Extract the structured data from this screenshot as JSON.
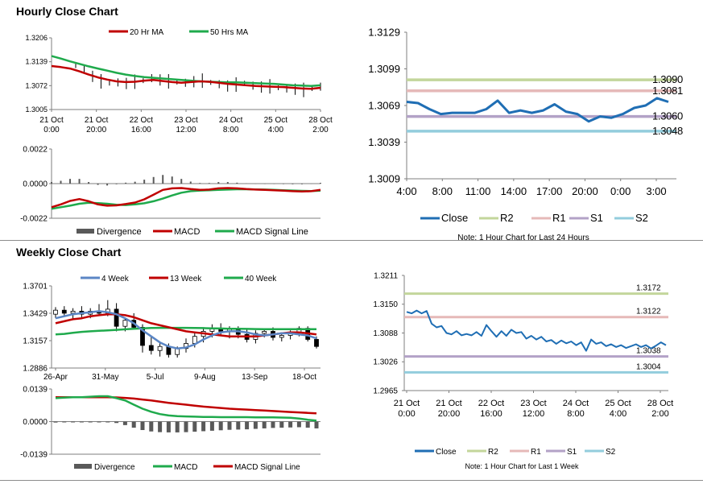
{
  "sections": {
    "hourly_title": "Hourly Close Chart",
    "weekly_title": "Weekly Close Chart"
  },
  "colors": {
    "ma_short": "#c00000",
    "ma_long": "#1faa4c",
    "ma_4week": "#5b86c5",
    "r2": "#c3d69b",
    "r1": "#e6b9b8",
    "s1": "#b3a2c7",
    "s2": "#93cddd",
    "close": "#1f6eb4",
    "divergence": "#595959"
  },
  "chart_data": [
    {
      "id": "hourly-price",
      "type": "line",
      "y_ticks": [
        "1.3206",
        "1.3139",
        "1.3072",
        "1.3005"
      ],
      "ylim": [
        1.3005,
        1.3206
      ],
      "x_ticks": [
        "21 Oct\n0:00",
        "21 Oct\n20:00",
        "22 Oct\n16:00",
        "23 Oct\n12:00",
        "24 Oct\n8:00",
        "25 Oct\n4:00",
        "28 Oct\n2:00"
      ],
      "legend": [
        "20 Hr MA",
        "50 Hrs MA"
      ],
      "series": [
        {
          "name": "20 Hr MA",
          "values": [
            1.3127,
            1.3124,
            1.312,
            1.3112,
            1.3103,
            1.3095,
            1.3089,
            1.3084,
            1.3082,
            1.3083,
            1.3086,
            1.3088,
            1.3085,
            1.3082,
            1.308,
            1.3082,
            1.3084,
            1.3083,
            1.308,
            1.3077,
            1.3075,
            1.3073,
            1.3071,
            1.307,
            1.3069,
            1.3068,
            1.3066,
            1.3064,
            1.3063,
            1.3066
          ]
        },
        {
          "name": "50 Hrs MA",
          "values": [
            1.3155,
            1.3148,
            1.314,
            1.3133,
            1.3126,
            1.312,
            1.3114,
            1.3108,
            1.3103,
            1.3099,
            1.3096,
            1.3094,
            1.3092,
            1.309,
            1.3088,
            1.3086,
            1.3084,
            1.3083,
            1.3082,
            1.3081,
            1.3081,
            1.308,
            1.3079,
            1.3078,
            1.3077,
            1.3075,
            1.3073,
            1.3072,
            1.3071,
            1.3073
          ]
        },
        {
          "name": "Close",
          "values": [
            1.3128,
            1.3118,
            1.3098,
            1.3084,
            1.3079,
            1.3081,
            1.3078,
            1.3083,
            1.3086,
            1.3093,
            1.3088,
            1.3084,
            1.3082,
            1.308,
            1.3083,
            1.3086,
            1.3081,
            1.3076,
            1.3071,
            1.3075,
            1.3079,
            1.3072,
            1.3068,
            1.307,
            1.3066,
            1.3064,
            1.3062,
            1.306,
            1.3064,
            1.3069
          ]
        }
      ]
    },
    {
      "id": "hourly-macd",
      "type": "line",
      "y_ticks": [
        "0.0022",
        "0.0000",
        "-0.0022"
      ],
      "ylim": [
        -0.0022,
        0.0022
      ],
      "legend": [
        "Divergence",
        "MACD",
        "MACD Signal Line"
      ],
      "series": [
        {
          "name": "MACD",
          "values": [
            -0.0015,
            -0.00132,
            -0.0011,
            -0.00098,
            -0.00112,
            -0.00132,
            -0.0014,
            -0.00138,
            -0.0013,
            -0.0012,
            -0.001,
            -0.0007,
            -0.0004,
            -0.0003,
            -0.00028,
            -0.00035,
            -0.0004,
            -0.00038,
            -0.0003,
            -0.00028,
            -0.0003,
            -0.00035,
            -0.00038,
            -0.0004,
            -0.00042,
            -0.00045,
            -0.00048,
            -0.0005,
            -0.00048,
            -0.0004
          ]
        },
        {
          "name": "MACD Signal Line",
          "values": [
            -0.0016,
            -0.0015,
            -0.0014,
            -0.00128,
            -0.00122,
            -0.00124,
            -0.00128,
            -0.00134,
            -0.00136,
            -0.00132,
            -0.00125,
            -0.00112,
            -0.00095,
            -0.00075,
            -0.00058,
            -0.00048,
            -0.00044,
            -0.00042,
            -0.0004,
            -0.00038,
            -0.00036,
            -0.00036,
            -0.00037,
            -0.00038,
            -0.0004,
            -0.00042,
            -0.00044,
            -0.00046,
            -0.00047,
            -0.00045
          ]
        },
        {
          "name": "Divergence",
          "values": [
            0.0001,
            0.00018,
            0.0003,
            0.0003,
            0.0001,
            -8e-05,
            -0.00012,
            -4e-05,
            6e-05,
            0.00012,
            0.00025,
            0.00042,
            0.00055,
            0.00045,
            0.0003,
            0.00013,
            4e-05,
            4e-05,
            0.0001,
            0.0001,
            6e-05,
            1e-05,
            -1e-05,
            -2e-05,
            -2e-05,
            -3e-05,
            -4e-05,
            -4e-05,
            -1e-05,
            5e-05
          ]
        }
      ]
    },
    {
      "id": "hourly-24h",
      "type": "line",
      "y_ticks": [
        "1.3129",
        "1.3099",
        "1.3069",
        "1.3039",
        "1.3009"
      ],
      "ylim": [
        1.3009,
        1.3129
      ],
      "x_ticks": [
        "4:00",
        "8:00",
        "11:00",
        "14:00",
        "17:00",
        "20:00",
        "0:00",
        "3:00"
      ],
      "legend": [
        "Close",
        "R2",
        "R1",
        "S1",
        "S2"
      ],
      "levels": [
        {
          "name": "R2",
          "value": 1.309,
          "label": "1.3090"
        },
        {
          "name": "R1",
          "value": 1.3081,
          "label": "1.3081"
        },
        {
          "name": "S1",
          "value": 1.306,
          "label": "1.3060"
        },
        {
          "name": "S2",
          "value": 1.3048,
          "label": "1.3048"
        }
      ],
      "series": [
        {
          "name": "Close",
          "values": [
            1.3072,
            1.3071,
            1.3066,
            1.3062,
            1.3063,
            1.3063,
            1.3063,
            1.3066,
            1.3073,
            1.3063,
            1.3065,
            1.3063,
            1.3065,
            1.307,
            1.3064,
            1.3062,
            1.3056,
            1.306,
            1.3059,
            1.3062,
            1.3067,
            1.3069,
            1.3075,
            1.3072
          ]
        }
      ],
      "note": "Note: 1 Hour Chart for Last 24 Hours"
    },
    {
      "id": "weekly-price",
      "type": "candlestick",
      "y_ticks": [
        "1.3701",
        "1.3429",
        "1.3157",
        "1.2886"
      ],
      "ylim": [
        1.2886,
        1.3701
      ],
      "x_ticks": [
        "26-Apr",
        "31-May",
        "5-Jul",
        "9-Aug",
        "13-Sep",
        "18-Oct"
      ],
      "legend": [
        "4 Week",
        "13 Week",
        "40 Week"
      ],
      "candles": [
        {
          "o": 1.342,
          "h": 1.349,
          "l": 1.338,
          "c": 1.346
        },
        {
          "o": 1.346,
          "h": 1.35,
          "l": 1.34,
          "c": 1.343
        },
        {
          "o": 1.343,
          "h": 1.348,
          "l": 1.337,
          "c": 1.345
        },
        {
          "o": 1.345,
          "h": 1.35,
          "l": 1.339,
          "c": 1.342
        },
        {
          "o": 1.342,
          "h": 1.348,
          "l": 1.338,
          "c": 1.345
        },
        {
          "o": 1.345,
          "h": 1.352,
          "l": 1.341,
          "c": 1.343
        },
        {
          "o": 1.343,
          "h": 1.356,
          "l": 1.34,
          "c": 1.347
        },
        {
          "o": 1.347,
          "h": 1.353,
          "l": 1.325,
          "c": 1.33
        },
        {
          "o": 1.33,
          "h": 1.338,
          "l": 1.325,
          "c": 1.336
        },
        {
          "o": 1.336,
          "h": 1.343,
          "l": 1.327,
          "c": 1.329
        },
        {
          "o": 1.329,
          "h": 1.332,
          "l": 1.304,
          "c": 1.311
        },
        {
          "o": 1.311,
          "h": 1.32,
          "l": 1.302,
          "c": 1.306
        },
        {
          "o": 1.306,
          "h": 1.314,
          "l": 1.3,
          "c": 1.31
        },
        {
          "o": 1.31,
          "h": 1.313,
          "l": 1.299,
          "c": 1.302
        },
        {
          "o": 1.302,
          "h": 1.31,
          "l": 1.299,
          "c": 1.308
        },
        {
          "o": 1.308,
          "h": 1.318,
          "l": 1.304,
          "c": 1.313
        },
        {
          "o": 1.313,
          "h": 1.324,
          "l": 1.309,
          "c": 1.32
        },
        {
          "o": 1.32,
          "h": 1.329,
          "l": 1.314,
          "c": 1.325
        },
        {
          "o": 1.325,
          "h": 1.332,
          "l": 1.319,
          "c": 1.328
        },
        {
          "o": 1.328,
          "h": 1.333,
          "l": 1.321,
          "c": 1.325
        },
        {
          "o": 1.325,
          "h": 1.33,
          "l": 1.318,
          "c": 1.327
        },
        {
          "o": 1.327,
          "h": 1.33,
          "l": 1.318,
          "c": 1.322
        },
        {
          "o": 1.322,
          "h": 1.328,
          "l": 1.314,
          "c": 1.317
        },
        {
          "o": 1.317,
          "h": 1.326,
          "l": 1.313,
          "c": 1.323
        },
        {
          "o": 1.323,
          "h": 1.328,
          "l": 1.319,
          "c": 1.325
        },
        {
          "o": 1.325,
          "h": 1.329,
          "l": 1.316,
          "c": 1.319
        },
        {
          "o": 1.319,
          "h": 1.324,
          "l": 1.315,
          "c": 1.321
        },
        {
          "o": 1.321,
          "h": 1.326,
          "l": 1.317,
          "c": 1.324
        },
        {
          "o": 1.324,
          "h": 1.33,
          "l": 1.32,
          "c": 1.328
        },
        {
          "o": 1.328,
          "h": 1.33,
          "l": 1.315,
          "c": 1.317
        },
        {
          "o": 1.317,
          "h": 1.32,
          "l": 1.308,
          "c": 1.31
        }
      ],
      "series": [
        {
          "name": "4 Week",
          "values": [
            1.338,
            1.34,
            1.342,
            1.343,
            1.344,
            1.345,
            1.344,
            1.342,
            1.338,
            1.333,
            1.326,
            1.32,
            1.314,
            1.31,
            1.308,
            1.309,
            1.312,
            1.317,
            1.321,
            1.324,
            1.325,
            1.325,
            1.324,
            1.322,
            1.321,
            1.322,
            1.323,
            1.323,
            1.322,
            1.321,
            1.318
          ]
        },
        {
          "name": "13 Week",
          "values": [
            1.333,
            1.335,
            1.337,
            1.338,
            1.34,
            1.341,
            1.342,
            1.342,
            1.341,
            1.339,
            1.336,
            1.333,
            1.331,
            1.329,
            1.327,
            1.325,
            1.324,
            1.323,
            1.322,
            1.321,
            1.32,
            1.32,
            1.32,
            1.32,
            1.321,
            1.322,
            1.323,
            1.324,
            1.324,
            1.323,
            1.322
          ]
        },
        {
          "name": "40 Week",
          "values": [
            1.322,
            1.3225,
            1.3235,
            1.3245,
            1.325,
            1.3255,
            1.326,
            1.3265,
            1.327,
            1.3275,
            1.328,
            1.3283,
            1.3285,
            1.3285,
            1.3285,
            1.3285,
            1.3283,
            1.3282,
            1.328,
            1.3278,
            1.3276,
            1.3275,
            1.3274,
            1.3273,
            1.3272,
            1.3272,
            1.3272,
            1.3272,
            1.3272,
            1.3272,
            1.3272
          ]
        }
      ]
    },
    {
      "id": "weekly-macd",
      "type": "line",
      "y_ticks": [
        "0.0139",
        "0.0000",
        "-0.0139"
      ],
      "ylim": [
        -0.0139,
        0.0139
      ],
      "legend": [
        "Divergence",
        "MACD",
        "MACD Signal Line"
      ],
      "series": [
        {
          "name": "MACD",
          "values": [
            0.01,
            0.0102,
            0.0104,
            0.0104,
            0.0106,
            0.0108,
            0.0108,
            0.01,
            0.009,
            0.0072,
            0.0055,
            0.0042,
            0.0032,
            0.0026,
            0.0023,
            0.0022,
            0.0021,
            0.002,
            0.002,
            0.0019,
            0.0019,
            0.0019,
            0.0019,
            0.0018,
            0.0018,
            0.0018,
            0.0017,
            0.0016,
            0.0013,
            0.0008,
            0.0004
          ]
        },
        {
          "name": "MACD Signal Line",
          "values": [
            0.0104,
            0.0104,
            0.0104,
            0.0104,
            0.0104,
            0.0104,
            0.0104,
            0.0103,
            0.0101,
            0.0098,
            0.0094,
            0.009,
            0.0085,
            0.008,
            0.0076,
            0.0072,
            0.0068,
            0.0064,
            0.0061,
            0.0058,
            0.0055,
            0.0053,
            0.0051,
            0.0049,
            0.0047,
            0.0045,
            0.0043,
            0.0041,
            0.0039,
            0.0037,
            0.0035
          ]
        },
        {
          "name": "Divergence",
          "values": [
            -0.0004,
            -0.0003,
            -0.0002,
            -0.0002,
            -0.0002,
            -0.0002,
            -0.0003,
            -0.0006,
            -0.0015,
            -0.0026,
            -0.0036,
            -0.0042,
            -0.0045,
            -0.0046,
            -0.0046,
            -0.0045,
            -0.0043,
            -0.0041,
            -0.0039,
            -0.0037,
            -0.0035,
            -0.0034,
            -0.0033,
            -0.0031,
            -0.0029,
            -0.0027,
            -0.0026,
            -0.0025,
            -0.0024,
            -0.0026,
            -0.0029
          ]
        }
      ]
    },
    {
      "id": "weekly-hourly",
      "type": "line",
      "y_ticks": [
        "1.3211",
        "1.3150",
        "1.3088",
        "1.3026",
        "1.2965"
      ],
      "ylim": [
        1.2965,
        1.3211
      ],
      "x_ticks": [
        "21 Oct\n0:00",
        "21 Oct\n20:00",
        "22 Oct\n16:00",
        "23 Oct\n12:00",
        "24 Oct\n8:00",
        "25 Oct\n4:00",
        "28 Oct\n2:00"
      ],
      "legend": [
        "Close",
        "R2",
        "R1",
        "S1",
        "S2"
      ],
      "levels": [
        {
          "name": "R2",
          "value": 1.3172,
          "label": "1.3172"
        },
        {
          "name": "R1",
          "value": 1.3122,
          "label": "1.3122"
        },
        {
          "name": "S1",
          "value": 1.3038,
          "label": "1.3038"
        },
        {
          "name": "S2",
          "value": 1.3004,
          "label": "1.3004"
        }
      ],
      "series": [
        {
          "name": "Close",
          "values": [
            1.3133,
            1.313,
            1.3136,
            1.313,
            1.3135,
            1.3108,
            1.31,
            1.3103,
            1.3088,
            1.3085,
            1.3092,
            1.3083,
            1.3086,
            1.3083,
            1.309,
            1.3082,
            1.3105,
            1.3092,
            1.308,
            1.3092,
            1.3082,
            1.3095,
            1.3088,
            1.309,
            1.3076,
            1.3082,
            1.3074,
            1.308,
            1.307,
            1.3073,
            1.3065,
            1.3072,
            1.3066,
            1.307,
            1.3062,
            1.3068,
            1.305,
            1.3074,
            1.3065,
            1.3068,
            1.306,
            1.3064,
            1.3058,
            1.3062,
            1.3056,
            1.306,
            1.3064,
            1.3058,
            1.3062,
            1.3055,
            1.3061,
            1.3068,
            1.3062
          ]
        }
      ],
      "note": "Note: 1 Hour Chart for Last 1 Week"
    }
  ]
}
